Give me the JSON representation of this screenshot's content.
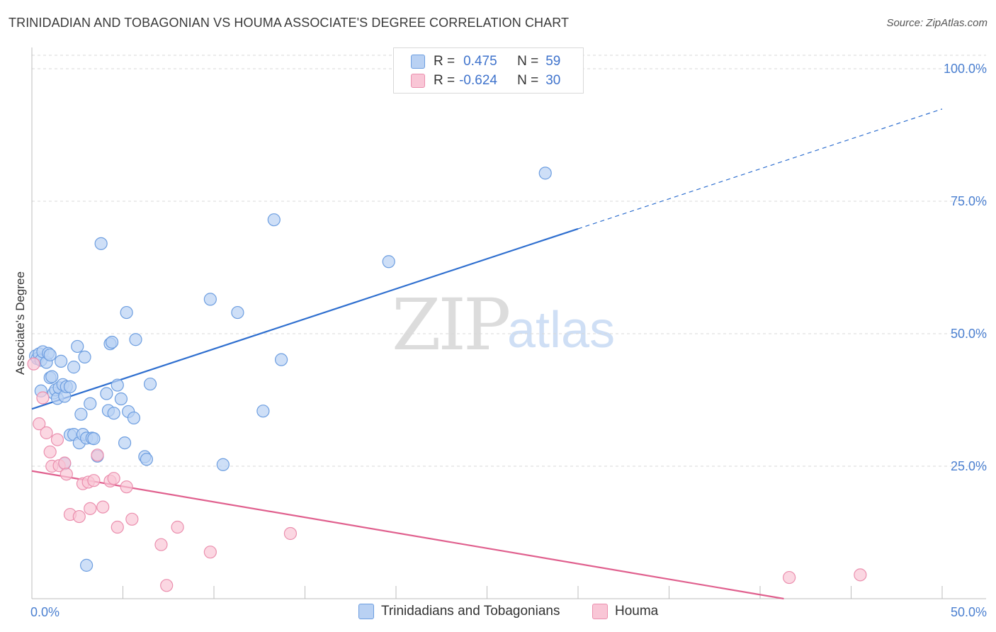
{
  "title": "TRINIDADIAN AND TOBAGONIAN VS HOUMA ASSOCIATE'S DEGREE CORRELATION CHART",
  "source": "Source: ZipAtlas.com",
  "watermark": {
    "zip": "ZIP",
    "atlas": "atlas"
  },
  "legend": {
    "r_label": "R =",
    "n_label": "N =",
    "rows": [
      {
        "r": "0.475",
        "n": "59"
      },
      {
        "r": "-0.624",
        "n": "30"
      }
    ]
  },
  "colors": {
    "blue_fill": "#b9d1f3",
    "blue_stroke": "#6d9ee0",
    "blue_line": "#2f6fcf",
    "pink_fill": "#f9c6d6",
    "pink_stroke": "#eb8fae",
    "pink_line": "#e0608e",
    "grid": "#d9d9d9",
    "tick_text": "#4a7fd0"
  },
  "chart_data": {
    "type": "scatter",
    "title": "TRINIDADIAN AND TOBAGONIAN VS HOUMA ASSOCIATE'S DEGREE CORRELATION CHART",
    "xlabel": "",
    "ylabel": "Associate's Degree",
    "xlim": [
      0,
      50
    ],
    "ylim": [
      0,
      100
    ],
    "x_tick_labels": [
      "0.0%",
      "50.0%"
    ],
    "y_ticks": [
      25,
      50,
      75,
      100
    ],
    "y_tick_labels": [
      "25.0%",
      "50.0%",
      "75.0%",
      "100.0%"
    ],
    "grid": true,
    "legend_position": "top-center",
    "series": [
      {
        "name": "Trinidadians and Tobagonians",
        "color": "#6d9ee0",
        "points": [
          [
            0.2,
            45.8
          ],
          [
            0.3,
            45.3
          ],
          [
            0.4,
            46.2
          ],
          [
            0.5,
            45.0
          ],
          [
            0.6,
            46.6
          ],
          [
            0.8,
            44.6
          ],
          [
            0.9,
            46.3
          ],
          [
            1.0,
            46.0
          ],
          [
            0.5,
            39.2
          ],
          [
            1.0,
            41.7
          ],
          [
            1.1,
            41.9
          ],
          [
            1.2,
            38.8
          ],
          [
            1.3,
            39.4
          ],
          [
            1.4,
            37.8
          ],
          [
            1.5,
            39.8
          ],
          [
            1.6,
            44.8
          ],
          [
            1.7,
            40.4
          ],
          [
            1.8,
            38.2
          ],
          [
            1.9,
            40.0
          ],
          [
            2.1,
            40.0
          ],
          [
            2.3,
            43.7
          ],
          [
            2.5,
            47.6
          ],
          [
            2.7,
            34.8
          ],
          [
            2.9,
            45.6
          ],
          [
            3.2,
            36.8
          ],
          [
            2.1,
            30.9
          ],
          [
            2.3,
            31.0
          ],
          [
            2.6,
            29.4
          ],
          [
            2.8,
            31.0
          ],
          [
            3.0,
            30.3
          ],
          [
            3.3,
            30.3
          ],
          [
            3.6,
            26.9
          ],
          [
            3.8,
            67.0
          ],
          [
            4.1,
            38.7
          ],
          [
            4.2,
            35.5
          ],
          [
            4.3,
            48.1
          ],
          [
            4.4,
            48.4
          ],
          [
            4.5,
            35.0
          ],
          [
            4.7,
            40.3
          ],
          [
            4.9,
            37.7
          ],
          [
            5.1,
            29.4
          ],
          [
            5.2,
            54.0
          ],
          [
            5.3,
            35.3
          ],
          [
            5.6,
            34.1
          ],
          [
            5.7,
            48.9
          ],
          [
            6.2,
            26.8
          ],
          [
            6.3,
            26.3
          ],
          [
            6.5,
            40.5
          ],
          [
            1.8,
            25.5
          ],
          [
            3.0,
            6.3
          ],
          [
            9.8,
            56.5
          ],
          [
            10.5,
            25.3
          ],
          [
            11.3,
            54.0
          ],
          [
            12.7,
            35.4
          ],
          [
            13.3,
            71.5
          ],
          [
            13.7,
            45.1
          ],
          [
            19.6,
            63.6
          ],
          [
            28.2,
            80.3
          ],
          [
            3.4,
            30.2
          ]
        ]
      },
      {
        "name": "Houma",
        "color": "#eb8fae",
        "points": [
          [
            0.1,
            44.3
          ],
          [
            0.4,
            33.0
          ],
          [
            0.6,
            37.9
          ],
          [
            0.8,
            31.3
          ],
          [
            1.0,
            27.7
          ],
          [
            1.1,
            25.0
          ],
          [
            1.4,
            30.0
          ],
          [
            1.5,
            25.1
          ],
          [
            1.8,
            25.6
          ],
          [
            1.9,
            23.5
          ],
          [
            2.1,
            15.9
          ],
          [
            2.6,
            15.5
          ],
          [
            2.8,
            21.7
          ],
          [
            3.1,
            22.0
          ],
          [
            3.2,
            17.0
          ],
          [
            3.4,
            22.3
          ],
          [
            3.6,
            27.1
          ],
          [
            3.9,
            17.3
          ],
          [
            4.3,
            22.2
          ],
          [
            4.5,
            22.7
          ],
          [
            4.7,
            13.5
          ],
          [
            5.2,
            21.1
          ],
          [
            5.5,
            15.0
          ],
          [
            7.1,
            10.2
          ],
          [
            7.4,
            2.5
          ],
          [
            8.0,
            13.5
          ],
          [
            9.8,
            8.8
          ],
          [
            14.2,
            12.3
          ],
          [
            41.6,
            4.0
          ],
          [
            45.5,
            4.5
          ]
        ]
      }
    ],
    "trendlines": [
      {
        "series": "Trinidadians and Tobagonians",
        "x": [
          0,
          30
        ],
        "y": [
          35.8,
          69.8
        ],
        "dashed_extension_to_x": 50,
        "dashed_end_y": 92.4
      },
      {
        "series": "Houma",
        "x": [
          0,
          41.3
        ],
        "y": [
          24.1,
          0
        ]
      }
    ]
  },
  "bottom_legend": [
    {
      "label": "Trinidadians and Tobagonians"
    },
    {
      "label": "Houma"
    }
  ]
}
